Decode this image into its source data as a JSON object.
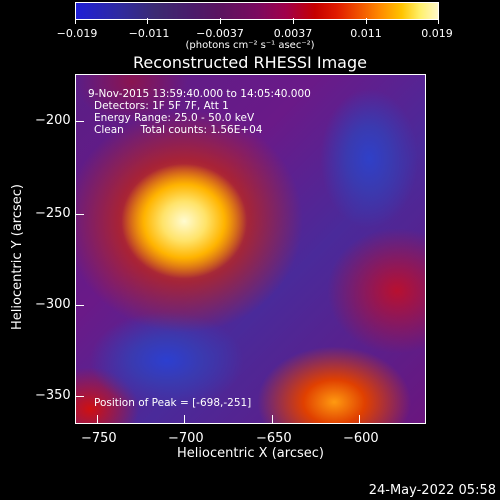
{
  "colorbar": {
    "tick_labels": [
      "−0.019",
      "−0.011",
      "−0.0037",
      "0.0037",
      "0.011",
      "0.019"
    ],
    "unit": "(photons cm⁻² s⁻¹ asec⁻²)"
  },
  "title": "Reconstructed RHESSI Image",
  "info": {
    "time_range": "9-Nov-2015 13:59:40.000 to 14:05:40.000",
    "detectors": "Detectors: 1F 5F 7F, Att 1",
    "energy": "Energy Range: 25.0 - 50.0 keV",
    "clean": "Clean     Total counts: 1.56E+04",
    "peak": "Position of Peak = [-698,-251]"
  },
  "axes": {
    "x_label": "Heliocentric X (arcsec)",
    "y_label": "Heliocentric Y (arcsec)",
    "x_ticks": [
      "−750",
      "−700",
      "−650",
      "−600"
    ],
    "y_ticks": [
      "−200",
      "−250",
      "−300",
      "−350"
    ]
  },
  "footer": {
    "date": "24-May-2022 05:58"
  },
  "colors": {
    "background": "#000000",
    "peak": "#fff6b0",
    "negative": "#2f3fd0"
  }
}
